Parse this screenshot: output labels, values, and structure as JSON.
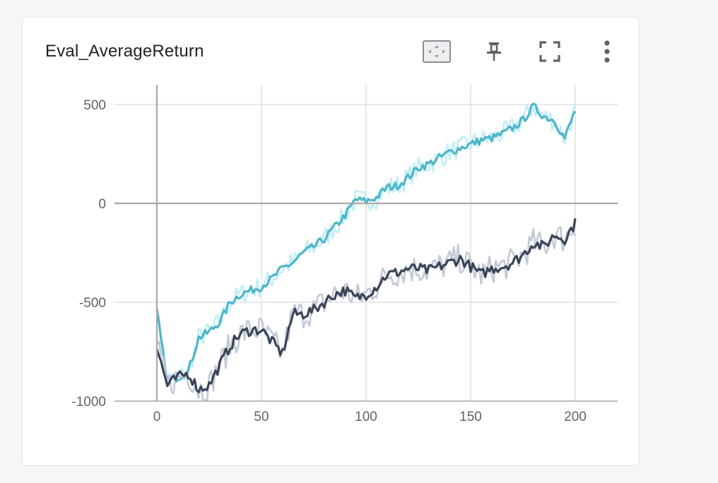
{
  "card": {
    "title": "Eval_AverageReturn"
  },
  "toolbar": {
    "fit_icon": "fit-to-data-icon",
    "pin_icon": "pin-icon",
    "fullscreen_icon": "fullscreen-icon",
    "more_icon": "more-vert-icon"
  },
  "colors": {
    "series_light_smoothed": "#4fb5c8",
    "series_light_raw": "#bfeff7",
    "series_dark_smoothed": "#3a4558",
    "series_dark_raw": "#c3c9d6",
    "grid": "#d9d9d9",
    "zero_line": "#a9a9a9"
  },
  "chart_data": {
    "type": "line",
    "title": "Eval_AverageReturn",
    "xlabel": "",
    "ylabel": "",
    "xlim": [
      -20,
      220
    ],
    "ylim": [
      -1000,
      600
    ],
    "x_ticks": [
      0,
      50,
      100,
      150,
      200
    ],
    "x_tick_labels": [
      "0",
      "50",
      "100",
      "150",
      "200"
    ],
    "y_ticks": [
      500,
      0,
      -500,
      -1000
    ],
    "y_tick_labels": [
      "500",
      "0",
      "-500",
      "-1000"
    ],
    "grid": true,
    "series": [
      {
        "style": "light",
        "x": [
          0,
          5,
          10,
          15,
          20,
          25,
          30,
          35,
          40,
          45,
          50,
          55,
          60,
          65,
          70,
          75,
          80,
          85,
          90,
          95,
          100,
          105,
          110,
          115,
          120,
          125,
          130,
          135,
          140,
          145,
          150,
          155,
          160,
          165,
          170,
          175,
          180,
          185,
          190,
          195,
          200
        ],
        "values": [
          -550,
          -900,
          -880,
          -850,
          -680,
          -650,
          -600,
          -500,
          -460,
          -440,
          -420,
          -380,
          -330,
          -300,
          -250,
          -220,
          -180,
          -120,
          -60,
          20,
          10,
          30,
          80,
          90,
          130,
          180,
          200,
          230,
          260,
          280,
          300,
          320,
          330,
          350,
          380,
          420,
          490,
          440,
          420,
          330,
          470
        ]
      },
      {
        "style": "dark",
        "x": [
          0,
          5,
          10,
          15,
          20,
          25,
          30,
          35,
          40,
          45,
          50,
          55,
          60,
          65,
          70,
          75,
          80,
          85,
          90,
          95,
          100,
          105,
          110,
          115,
          120,
          125,
          130,
          135,
          140,
          145,
          150,
          155,
          160,
          165,
          170,
          175,
          180,
          185,
          190,
          195,
          200
        ],
        "values": [
          -730,
          -920,
          -880,
          -860,
          -940,
          -920,
          -820,
          -720,
          -660,
          -640,
          -640,
          -700,
          -760,
          -560,
          -560,
          -540,
          -500,
          -460,
          -440,
          -480,
          -460,
          -420,
          -360,
          -350,
          -330,
          -330,
          -340,
          -320,
          -300,
          -280,
          -320,
          -360,
          -330,
          -320,
          -300,
          -260,
          -200,
          -220,
          -160,
          -180,
          -100
        ]
      }
    ]
  }
}
